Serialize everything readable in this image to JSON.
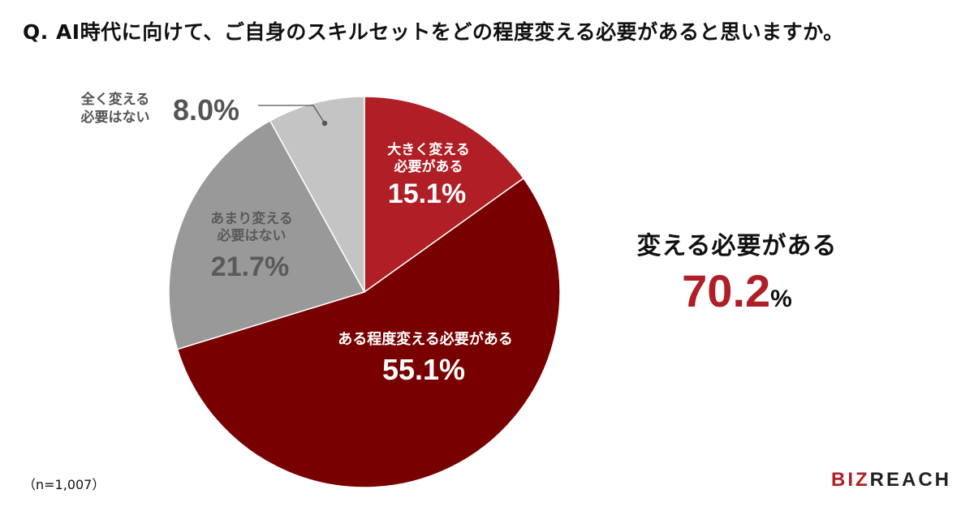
{
  "question": "Q.  AI時代に向けて、ご自身のスキルセットをどの程度変える必要があると思いますか。",
  "note": "（n=1,007）",
  "logo": {
    "part1": "BIZ",
    "part2": "REACH"
  },
  "summary": {
    "label": "変える必要がある",
    "value": "70.2",
    "unit": "%"
  },
  "chart_data": {
    "type": "pie",
    "total_n": 1007,
    "slices": [
      {
        "label_lines": [
          "大きく変える",
          "必要がある"
        ],
        "value": 15.1,
        "value_text": "15.1%",
        "color": "#b01e26",
        "text_color": "#ffffff"
      },
      {
        "label_lines": [
          "ある程度変える必要がある"
        ],
        "value": 55.1,
        "value_text": "55.1%",
        "color": "#780000",
        "text_color": "#ffffff"
      },
      {
        "label_lines": [
          "あまり変える",
          "必要はない"
        ],
        "value": 21.7,
        "value_text": "21.7%",
        "color": "#999999",
        "text_color": "#5a5a5a"
      },
      {
        "label_lines": [
          "全く変える",
          "必要はない"
        ],
        "value": 8.0,
        "value_text": "8.0%",
        "color": "#c4c4c4",
        "text_color": "#555555"
      }
    ]
  }
}
